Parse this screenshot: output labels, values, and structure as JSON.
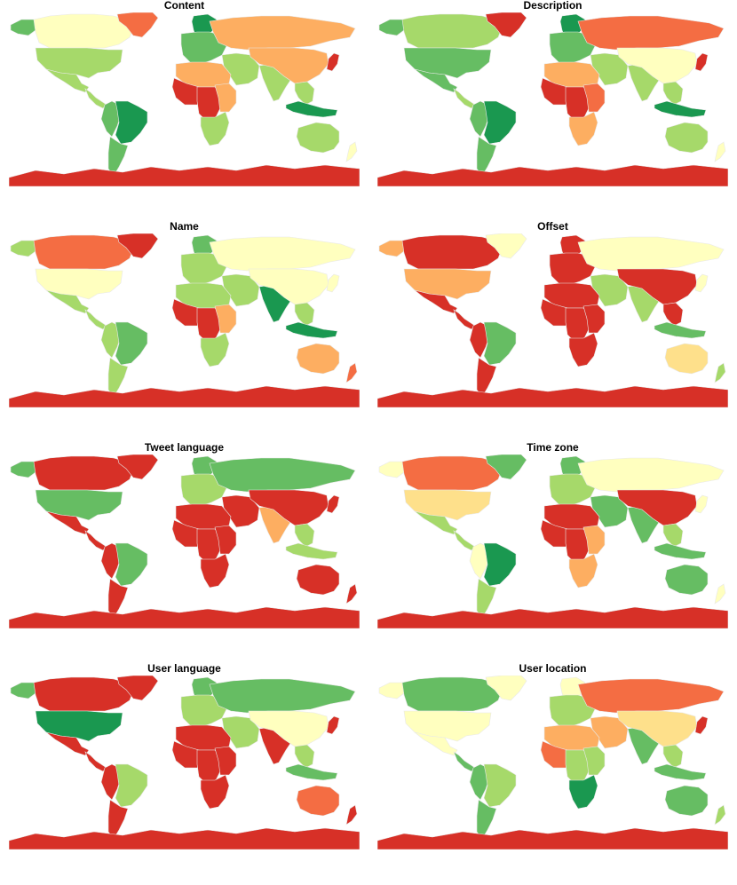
{
  "figure": {
    "panels": [
      {
        "title": "Content"
      },
      {
        "title": "Description"
      },
      {
        "title": "Name"
      },
      {
        "title": "Offset"
      },
      {
        "title": "Tweet language"
      },
      {
        "title": "Time zone"
      },
      {
        "title": "User language"
      },
      {
        "title": "User location"
      }
    ],
    "palette": {
      "dark_green": "#1a9850",
      "green": "#66bd63",
      "light_green": "#a6d96a",
      "pale_yellow": "#fee08b",
      "cream": "#ffffbf",
      "light_orange": "#fdae61",
      "orange": "#f46d43",
      "red": "#d73027",
      "border": "#e8e8e8"
    },
    "region_colors": [
      {
        "canada": "cream",
        "usa": "light_green",
        "alaska": "green",
        "greenland": "orange",
        "mexico": "light_green",
        "central_america": "light_green",
        "brazil": "dark_green",
        "south_america_west": "green",
        "south_america_south": "green",
        "europe": "green",
        "scandinavia": "dark_green",
        "russia": "light_orange",
        "middle_east": "light_green",
        "north_africa": "light_orange",
        "west_africa": "red",
        "central_africa": "red",
        "east_africa": "light_orange",
        "southern_africa": "light_green",
        "india": "light_green",
        "china": "light_orange",
        "southeast_asia": "light_green",
        "indonesia": "dark_green",
        "japan": "red",
        "australia": "light_green",
        "new_zealand": "cream",
        "antarctica": "red"
      },
      {
        "canada": "light_green",
        "usa": "green",
        "alaska": "green",
        "greenland": "red",
        "mexico": "green",
        "central_america": "light_green",
        "brazil": "dark_green",
        "south_america_west": "green",
        "south_america_south": "green",
        "europe": "green",
        "scandinavia": "dark_green",
        "russia": "orange",
        "middle_east": "light_green",
        "north_africa": "light_orange",
        "west_africa": "red",
        "central_africa": "red",
        "east_africa": "orange",
        "southern_africa": "light_orange",
        "india": "light_green",
        "china": "cream",
        "southeast_asia": "light_green",
        "indonesia": "dark_green",
        "japan": "red",
        "australia": "light_green",
        "new_zealand": "cream",
        "antarctica": "red"
      },
      {
        "canada": "orange",
        "usa": "cream",
        "alaska": "light_green",
        "greenland": "red",
        "mexico": "light_green",
        "central_america": "light_green",
        "brazil": "green",
        "south_america_west": "light_green",
        "south_america_south": "light_green",
        "europe": "light_green",
        "scandinavia": "green",
        "russia": "cream",
        "middle_east": "light_green",
        "north_africa": "light_green",
        "west_africa": "red",
        "central_africa": "red",
        "east_africa": "light_orange",
        "southern_africa": "light_green",
        "india": "dark_green",
        "china": "cream",
        "southeast_asia": "light_green",
        "indonesia": "dark_green",
        "japan": "cream",
        "australia": "light_orange",
        "new_zealand": "orange",
        "antarctica": "red"
      },
      {
        "canada": "red",
        "usa": "light_orange",
        "alaska": "light_orange",
        "greenland": "cream",
        "mexico": "red",
        "central_america": "red",
        "brazil": "green",
        "south_america_west": "red",
        "south_america_south": "red",
        "europe": "red",
        "scandinavia": "red",
        "russia": "cream",
        "middle_east": "light_green",
        "north_africa": "red",
        "west_africa": "red",
        "central_africa": "red",
        "east_africa": "red",
        "southern_africa": "red",
        "india": "light_green",
        "china": "red",
        "southeast_asia": "red",
        "indonesia": "green",
        "japan": "cream",
        "australia": "pale_yellow",
        "new_zealand": "light_green",
        "antarctica": "red"
      },
      {
        "canada": "red",
        "usa": "green",
        "alaska": "green",
        "greenland": "red",
        "mexico": "red",
        "central_america": "red",
        "brazil": "green",
        "south_america_west": "red",
        "south_america_south": "red",
        "europe": "light_green",
        "scandinavia": "green",
        "russia": "green",
        "middle_east": "red",
        "north_africa": "red",
        "west_africa": "red",
        "central_africa": "red",
        "east_africa": "red",
        "southern_africa": "red",
        "india": "light_orange",
        "china": "red",
        "southeast_asia": "light_green",
        "indonesia": "light_green",
        "japan": "red",
        "australia": "red",
        "new_zealand": "red",
        "antarctica": "red"
      },
      {
        "canada": "orange",
        "usa": "pale_yellow",
        "alaska": "cream",
        "greenland": "green",
        "mexico": "light_green",
        "central_america": "light_green",
        "brazil": "dark_green",
        "south_america_west": "cream",
        "south_america_south": "light_green",
        "europe": "light_green",
        "scandinavia": "green",
        "russia": "cream",
        "middle_east": "green",
        "north_africa": "red",
        "west_africa": "red",
        "central_africa": "red",
        "east_africa": "light_orange",
        "southern_africa": "light_orange",
        "india": "green",
        "china": "red",
        "southeast_asia": "light_green",
        "indonesia": "green",
        "japan": "cream",
        "australia": "green",
        "new_zealand": "cream",
        "antarctica": "red"
      },
      {
        "canada": "red",
        "usa": "dark_green",
        "alaska": "green",
        "greenland": "red",
        "mexico": "red",
        "central_america": "red",
        "brazil": "light_green",
        "south_america_west": "red",
        "south_america_south": "red",
        "europe": "light_green",
        "scandinavia": "green",
        "russia": "green",
        "middle_east": "light_green",
        "north_africa": "red",
        "west_africa": "red",
        "central_africa": "red",
        "east_africa": "red",
        "southern_africa": "red",
        "india": "red",
        "china": "cream",
        "southeast_asia": "light_green",
        "indonesia": "green",
        "japan": "red",
        "australia": "orange",
        "new_zealand": "red",
        "antarctica": "red"
      },
      {
        "canada": "green",
        "usa": "cream",
        "alaska": "cream",
        "greenland": "cream",
        "mexico": "cream",
        "central_america": "green",
        "brazil": "light_green",
        "south_america_west": "green",
        "south_america_south": "green",
        "europe": "light_green",
        "scandinavia": "cream",
        "russia": "orange",
        "middle_east": "light_orange",
        "north_africa": "light_orange",
        "west_africa": "orange",
        "central_africa": "light_green",
        "east_africa": "light_green",
        "southern_africa": "dark_green",
        "india": "green",
        "china": "pale_yellow",
        "southeast_asia": "light_green",
        "indonesia": "green",
        "japan": "red",
        "australia": "green",
        "new_zealand": "light_green",
        "antarctica": "red"
      }
    ]
  }
}
